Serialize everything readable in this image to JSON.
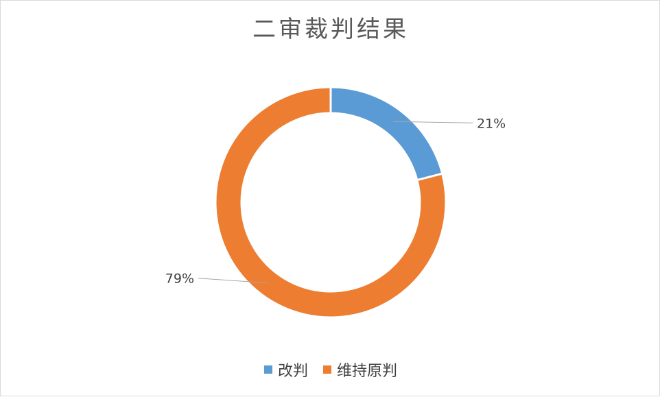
{
  "chart_data": {
    "type": "pie",
    "title": "二审裁判结果",
    "categories": [
      "改判",
      "维持原判"
    ],
    "values": [
      21,
      79
    ],
    "labels": [
      "21%",
      "79%"
    ],
    "colors": [
      "#5B9BD5",
      "#ED7D31"
    ],
    "legend": "bottom"
  }
}
